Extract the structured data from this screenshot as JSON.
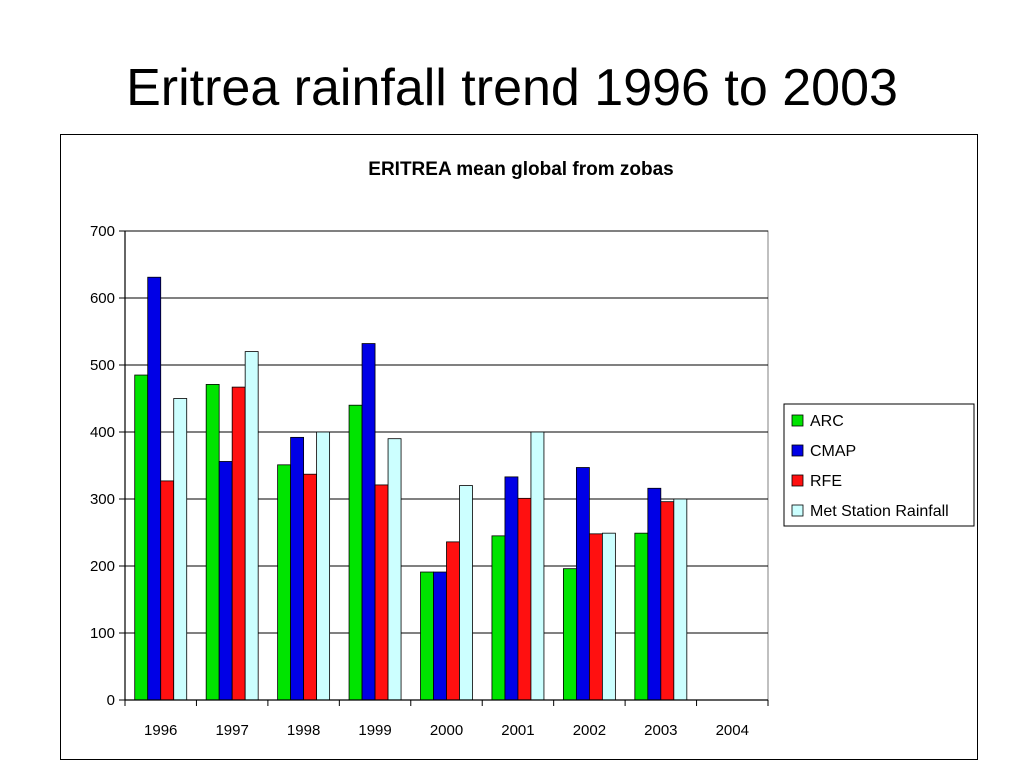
{
  "slide": {
    "title": "Eritrea rainfall trend 1996 to 2003"
  },
  "chart_data": {
    "type": "bar",
    "title": "ERITREA mean global from zobas",
    "xlabel": "",
    "ylabel": "",
    "categories": [
      "1996",
      "1997",
      "1998",
      "1999",
      "2000",
      "2001",
      "2002",
      "2003",
      "2004"
    ],
    "ylim": [
      0,
      700
    ],
    "yticks": [
      0,
      100,
      200,
      300,
      400,
      500,
      600,
      700
    ],
    "grid": true,
    "legend": "right",
    "series": [
      {
        "name": "ARC",
        "color": "#00e400",
        "values": [
          485,
          471,
          351,
          440,
          191,
          245,
          196,
          249,
          null
        ]
      },
      {
        "name": "CMAP",
        "color": "#0000e6",
        "values": [
          631,
          356,
          392,
          532,
          191,
          333,
          347,
          316,
          null
        ]
      },
      {
        "name": "RFE",
        "color": "#ff1010",
        "values": [
          327,
          467,
          337,
          321,
          236,
          301,
          248,
          296,
          null
        ]
      },
      {
        "name": "Met Station Rainfall",
        "color": "#ccffff",
        "values": [
          450,
          520,
          400,
          390,
          320,
          400,
          249,
          300,
          null
        ]
      }
    ]
  }
}
